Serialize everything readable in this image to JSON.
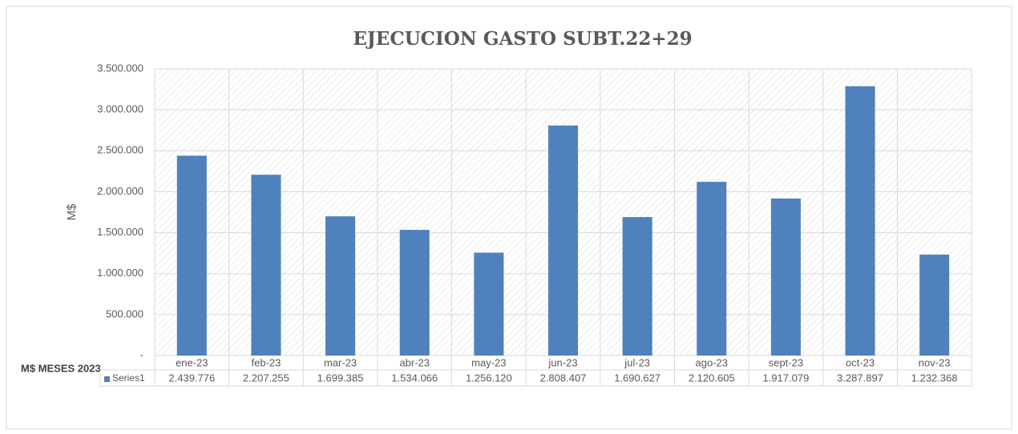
{
  "chart_data": {
    "type": "bar",
    "title": "EJECUCION GASTO SUBT.22+29",
    "y_label": "M$",
    "x_label": "M$ MESES 2023",
    "categories": [
      "ene-23",
      "feb-23",
      "mar-23",
      "abr-23",
      "may-23",
      "jun-23",
      "jul-23",
      "ago-23",
      "sept-23",
      "oct-23",
      "nov-23"
    ],
    "series": [
      {
        "name": "Series1",
        "color": "#4f81bd",
        "values": [
          2439776,
          2207255,
          1699385,
          1534066,
          1256120,
          2808407,
          1690627,
          2120605,
          1917079,
          3287897,
          1232368
        ],
        "value_labels": [
          "2.439.776",
          "2.207.255",
          "1.699.385",
          "1.534.066",
          "1.256.120",
          "2.808.407",
          "1.690.627",
          "2.120.605",
          "1.917.079",
          "3.287.897",
          "1.232.368"
        ]
      }
    ],
    "ylim": [
      0,
      3500000
    ],
    "yticks": [
      {
        "value": 0,
        "label": "-"
      },
      {
        "value": 500000,
        "label": "500.000"
      },
      {
        "value": 1000000,
        "label": "1.000.000"
      },
      {
        "value": 1500000,
        "label": "1.500.000"
      },
      {
        "value": 2000000,
        "label": "2.000.000"
      },
      {
        "value": 2500000,
        "label": "2.500.000"
      },
      {
        "value": 3000000,
        "label": "3.000.000"
      },
      {
        "value": 3500000,
        "label": "3.500.000"
      }
    ],
    "grid": true
  }
}
